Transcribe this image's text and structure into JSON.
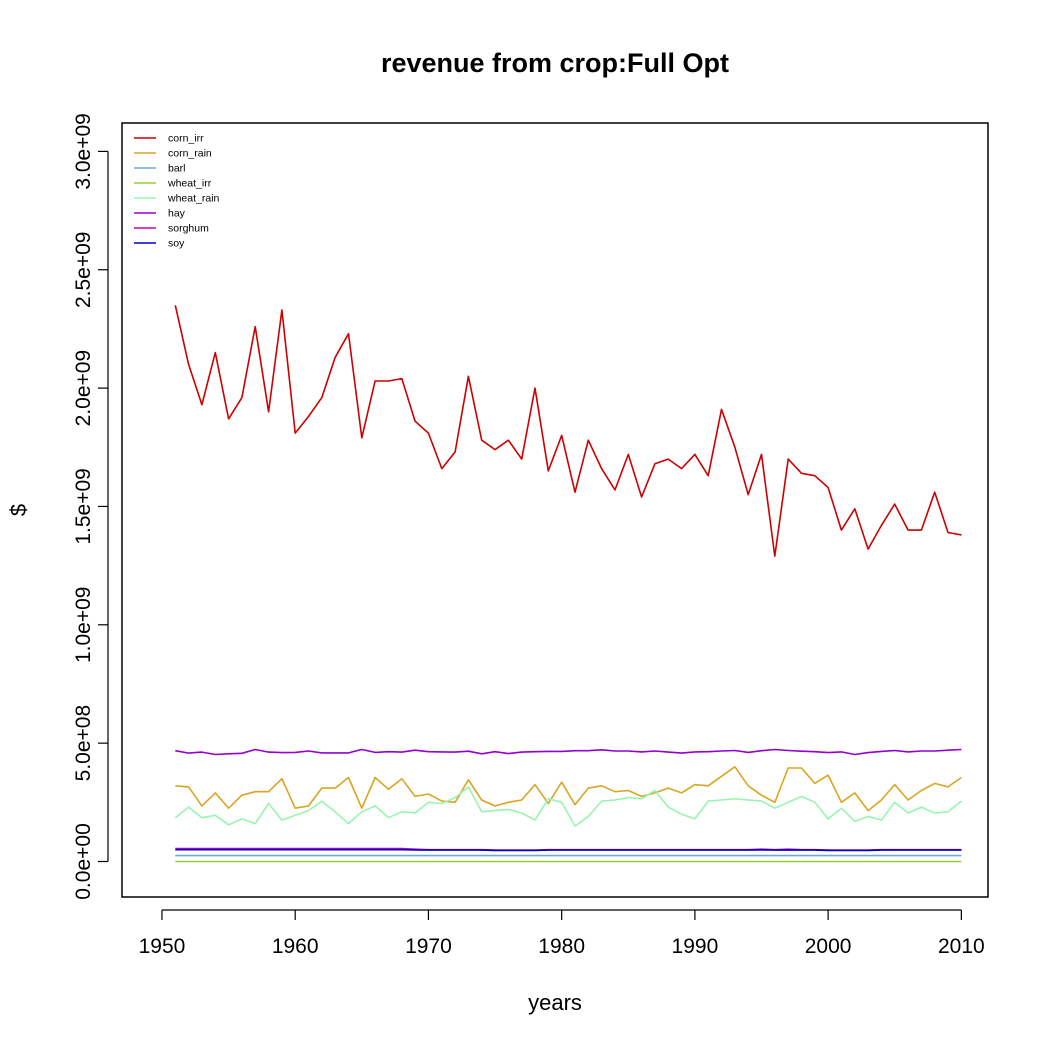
{
  "chart_data": {
    "type": "line",
    "title": "revenue from crop:Full Opt",
    "xlabel": "years",
    "ylabel": "$",
    "xlim": [
      1947,
      2012
    ],
    "ylim": [
      -150000000,
      3120000000
    ],
    "x_ticks": [
      1950,
      1960,
      1970,
      1980,
      1990,
      2000,
      2010
    ],
    "x_tick_labels": [
      "1950",
      "1960",
      "1970",
      "1980",
      "1990",
      "2000",
      "2010"
    ],
    "y_ticks": [
      0,
      500000000,
      1000000000,
      1500000000,
      2000000000,
      2500000000,
      3000000000
    ],
    "y_tick_labels": [
      "0.0e+00",
      "5.0e+08",
      "1.0e+09",
      "1.5e+09",
      "2.0e+09",
      "2.5e+09",
      "3.0e+09"
    ],
    "grid": false,
    "legend_position": "top-left",
    "x": [
      1951,
      1952,
      1953,
      1954,
      1955,
      1956,
      1957,
      1958,
      1959,
      1960,
      1961,
      1962,
      1963,
      1964,
      1965,
      1966,
      1967,
      1968,
      1969,
      1970,
      1971,
      1972,
      1973,
      1974,
      1975,
      1976,
      1977,
      1978,
      1979,
      1980,
      1981,
      1982,
      1983,
      1984,
      1985,
      1986,
      1987,
      1988,
      1989,
      1990,
      1991,
      1992,
      1993,
      1994,
      1995,
      1996,
      1997,
      1998,
      1999,
      2000,
      2001,
      2002,
      2003,
      2004,
      2005,
      2006,
      2007,
      2008,
      2009,
      2010
    ],
    "series": [
      {
        "name": "corn_irr",
        "color": "#cc0000",
        "values": [
          2350000000,
          2100000000,
          1930000000,
          2150000000,
          1870000000,
          1960000000,
          2260000000,
          1900000000,
          2330000000,
          1810000000,
          1880000000,
          1960000000,
          2130000000,
          2230000000,
          1790000000,
          2030000000,
          2030000000,
          2040000000,
          1860000000,
          1810000000,
          1660000000,
          1730000000,
          2050000000,
          1780000000,
          1740000000,
          1780000000,
          1700000000,
          2000000000,
          1650000000,
          1800000000,
          1560000000,
          1780000000,
          1660000000,
          1570000000,
          1720000000,
          1540000000,
          1680000000,
          1700000000,
          1660000000,
          1720000000,
          1630000000,
          1910000000,
          1750000000,
          1550000000,
          1720000000,
          1290000000,
          1700000000,
          1640000000,
          1630000000,
          1580000000,
          1400000000,
          1490000000,
          1320000000,
          1420000000,
          1510000000,
          1400000000,
          1400000000,
          1560000000,
          1390000000,
          1380000000
        ]
      },
      {
        "name": "corn_rain",
        "color": "#daa520",
        "values": [
          320000000,
          315000000,
          235000000,
          290000000,
          225000000,
          280000000,
          295000000,
          295000000,
          350000000,
          225000000,
          235000000,
          310000000,
          310000000,
          355000000,
          225000000,
          355000000,
          305000000,
          350000000,
          275000000,
          285000000,
          255000000,
          250000000,
          345000000,
          260000000,
          235000000,
          250000000,
          260000000,
          325000000,
          245000000,
          335000000,
          240000000,
          310000000,
          320000000,
          295000000,
          300000000,
          275000000,
          290000000,
          310000000,
          290000000,
          325000000,
          320000000,
          360000000,
          400000000,
          320000000,
          280000000,
          250000000,
          395000000,
          395000000,
          330000000,
          365000000,
          250000000,
          290000000,
          215000000,
          260000000,
          325000000,
          260000000,
          300000000,
          330000000,
          315000000,
          355000000
        ]
      },
      {
        "name": "barl",
        "color": "#6fa8dc",
        "values": [
          25000000,
          25000000,
          25000000,
          25000000,
          25000000,
          25000000,
          25000000,
          25000000,
          25000000,
          25000000,
          25000000,
          25000000,
          25000000,
          25000000,
          25000000,
          25000000,
          25000000,
          25000000,
          25000000,
          25000000,
          25000000,
          25000000,
          25000000,
          25000000,
          25000000,
          25000000,
          25000000,
          25000000,
          25000000,
          25000000,
          25000000,
          25000000,
          25000000,
          25000000,
          25000000,
          25000000,
          25000000,
          25000000,
          25000000,
          25000000,
          25000000,
          25000000,
          25000000,
          25000000,
          25000000,
          25000000,
          25000000,
          25000000,
          25000000,
          25000000,
          25000000,
          25000000,
          25000000,
          25000000,
          25000000,
          25000000,
          25000000,
          25000000,
          25000000,
          25000000
        ]
      },
      {
        "name": "wheat_irr",
        "color": "#9acd32",
        "values": [
          0,
          0,
          0,
          0,
          0,
          0,
          0,
          0,
          0,
          0,
          0,
          0,
          0,
          0,
          0,
          0,
          0,
          0,
          0,
          0,
          0,
          0,
          0,
          0,
          0,
          0,
          0,
          0,
          0,
          0,
          0,
          0,
          0,
          0,
          0,
          0,
          0,
          0,
          0,
          0,
          0,
          0,
          0,
          0,
          0,
          0,
          0,
          0,
          0,
          0,
          0,
          0,
          0,
          0,
          0,
          0,
          0,
          0,
          0,
          0
        ]
      },
      {
        "name": "wheat_rain",
        "color": "#98f5b0",
        "values": [
          185000000,
          230000000,
          185000000,
          195000000,
          155000000,
          180000000,
          160000000,
          245000000,
          175000000,
          195000000,
          215000000,
          255000000,
          210000000,
          160000000,
          210000000,
          235000000,
          185000000,
          210000000,
          205000000,
          250000000,
          245000000,
          270000000,
          315000000,
          210000000,
          215000000,
          220000000,
          205000000,
          175000000,
          265000000,
          250000000,
          150000000,
          190000000,
          255000000,
          260000000,
          270000000,
          265000000,
          300000000,
          230000000,
          200000000,
          180000000,
          255000000,
          260000000,
          265000000,
          260000000,
          255000000,
          225000000,
          250000000,
          275000000,
          250000000,
          180000000,
          225000000,
          170000000,
          190000000,
          175000000,
          250000000,
          205000000,
          230000000,
          205000000,
          210000000,
          255000000
        ]
      },
      {
        "name": "hay",
        "color": "#9400d3",
        "values": [
          468000000,
          458000000,
          462000000,
          452000000,
          455000000,
          457000000,
          473000000,
          462000000,
          460000000,
          461000000,
          467000000,
          459000000,
          459000000,
          459000000,
          473000000,
          461000000,
          464000000,
          462000000,
          470000000,
          464000000,
          463000000,
          462000000,
          466000000,
          455000000,
          464000000,
          456000000,
          462000000,
          464000000,
          465000000,
          465000000,
          468000000,
          468000000,
          472000000,
          467000000,
          467000000,
          463000000,
          467000000,
          462000000,
          458000000,
          463000000,
          464000000,
          467000000,
          469000000,
          461000000,
          468000000,
          473000000,
          469000000,
          466000000,
          464000000,
          460000000,
          463000000,
          452000000,
          460000000,
          465000000,
          469000000,
          463000000,
          467000000,
          467000000,
          470000000,
          473000000
        ]
      },
      {
        "name": "sorghum",
        "color": "#cc00aa",
        "values": [
          55000000,
          55000000,
          55000000,
          55000000,
          55000000,
          55000000,
          55000000,
          55000000,
          55000000,
          55000000,
          55000000,
          55000000,
          55000000,
          55000000,
          55000000,
          55000000,
          55000000,
          55000000,
          52000000,
          50000000,
          50000000,
          50000000,
          50000000,
          50000000,
          48000000,
          48000000,
          48000000,
          48000000,
          50000000,
          50000000,
          50000000,
          50000000,
          50000000,
          50000000,
          50000000,
          50000000,
          50000000,
          50000000,
          50000000,
          50000000,
          50000000,
          50000000,
          50000000,
          50000000,
          52000000,
          50000000,
          52000000,
          50000000,
          50000000,
          48000000,
          48000000,
          48000000,
          48000000,
          50000000,
          50000000,
          50000000,
          50000000,
          50000000,
          50000000,
          50000000
        ]
      },
      {
        "name": "soy",
        "color": "#0000cc",
        "values": [
          50000000,
          50000000,
          50000000,
          50000000,
          50000000,
          50000000,
          50000000,
          50000000,
          50000000,
          50000000,
          50000000,
          50000000,
          50000000,
          50000000,
          50000000,
          50000000,
          50000000,
          50000000,
          49000000,
          48000000,
          48000000,
          48000000,
          48000000,
          48000000,
          47000000,
          47000000,
          47000000,
          47000000,
          48000000,
          48000000,
          48000000,
          48000000,
          48000000,
          48000000,
          48000000,
          48000000,
          48000000,
          48000000,
          48000000,
          48000000,
          48000000,
          48000000,
          48000000,
          48000000,
          49000000,
          48000000,
          49000000,
          48000000,
          48000000,
          47000000,
          47000000,
          47000000,
          47000000,
          48000000,
          48000000,
          48000000,
          48000000,
          48000000,
          48000000,
          48000000
        ]
      }
    ]
  }
}
